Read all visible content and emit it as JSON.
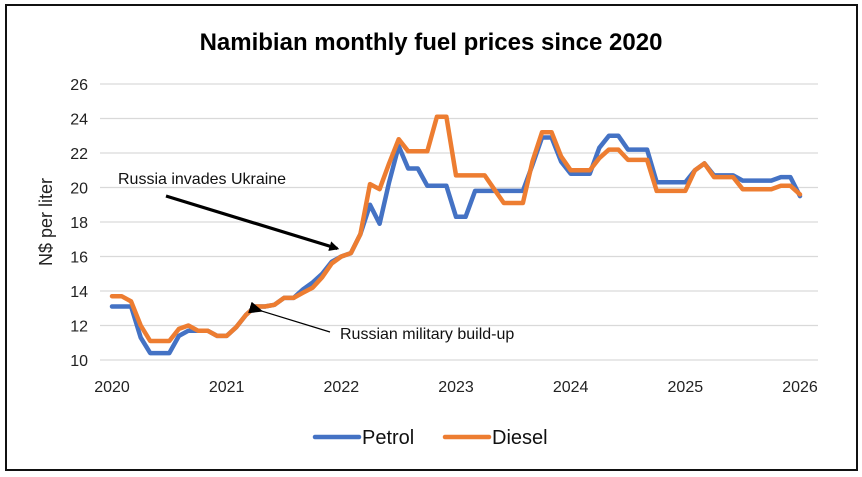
{
  "chart_data": {
    "type": "line",
    "title": "Namibian monthly fuel prices since 2020",
    "xlabel": "",
    "ylabel": "N$ per liter",
    "ylim": [
      10,
      26
    ],
    "yticks": [
      10,
      12,
      14,
      16,
      18,
      20,
      22,
      24,
      26
    ],
    "xlim": [
      2020,
      2026.25
    ],
    "xticks": [
      2020,
      2021,
      2022,
      2023,
      2024,
      2025,
      2026
    ],
    "grid": true,
    "legend_position": "bottom",
    "x_start": "2020-01",
    "x_step": "monthly",
    "series": [
      {
        "name": "Petrol",
        "color": "#4472C4",
        "values": [
          13.1,
          13.1,
          13.1,
          11.3,
          10.4,
          10.4,
          10.4,
          11.4,
          11.7,
          11.7,
          11.7,
          11.4,
          11.4,
          11.9,
          12.6,
          13.1,
          13.1,
          13.2,
          13.6,
          13.6,
          14.1,
          14.5,
          15.0,
          15.7,
          16.0,
          16.2,
          17.3,
          19.0,
          17.9,
          20.3,
          22.4,
          21.1,
          21.1,
          20.1,
          20.1,
          20.1,
          18.3,
          18.3,
          19.8,
          19.8,
          19.8,
          19.8,
          19.8,
          19.8,
          21.3,
          22.9,
          22.9,
          21.5,
          20.8,
          20.8,
          20.8,
          22.3,
          23.0,
          23.0,
          22.2,
          22.2,
          22.2,
          20.3,
          20.3,
          20.3,
          20.3,
          21.0,
          21.4,
          20.7,
          20.7,
          20.7,
          20.4,
          20.4,
          20.4,
          20.4,
          20.6,
          20.6,
          19.5
        ]
      },
      {
        "name": "Diesel",
        "color": "#ED7D31",
        "values": [
          13.7,
          13.7,
          13.4,
          12.0,
          11.1,
          11.1,
          11.1,
          11.8,
          12.0,
          11.7,
          11.7,
          11.4,
          11.4,
          11.9,
          12.6,
          13.1,
          13.1,
          13.2,
          13.6,
          13.6,
          13.9,
          14.2,
          14.8,
          15.6,
          16.0,
          16.2,
          17.3,
          20.2,
          19.9,
          21.4,
          22.8,
          22.1,
          22.1,
          22.1,
          24.1,
          24.1,
          20.7,
          20.7,
          20.7,
          20.7,
          19.9,
          19.1,
          19.1,
          19.1,
          21.5,
          23.2,
          23.2,
          21.8,
          21.0,
          21.0,
          21.0,
          21.7,
          22.2,
          22.2,
          21.6,
          21.6,
          21.6,
          19.8,
          19.8,
          19.8,
          19.8,
          21.0,
          21.4,
          20.6,
          20.6,
          20.6,
          19.9,
          19.9,
          19.9,
          19.9,
          20.1,
          20.1,
          19.6
        ]
      }
    ],
    "annotations": [
      {
        "text": "Russia invades Ukraine",
        "points_to_x": 2022.0,
        "points_to_y": 16.0
      },
      {
        "text": "Russian military build-up",
        "points_to_x": 2021.25,
        "points_to_y": 12.9
      }
    ]
  }
}
